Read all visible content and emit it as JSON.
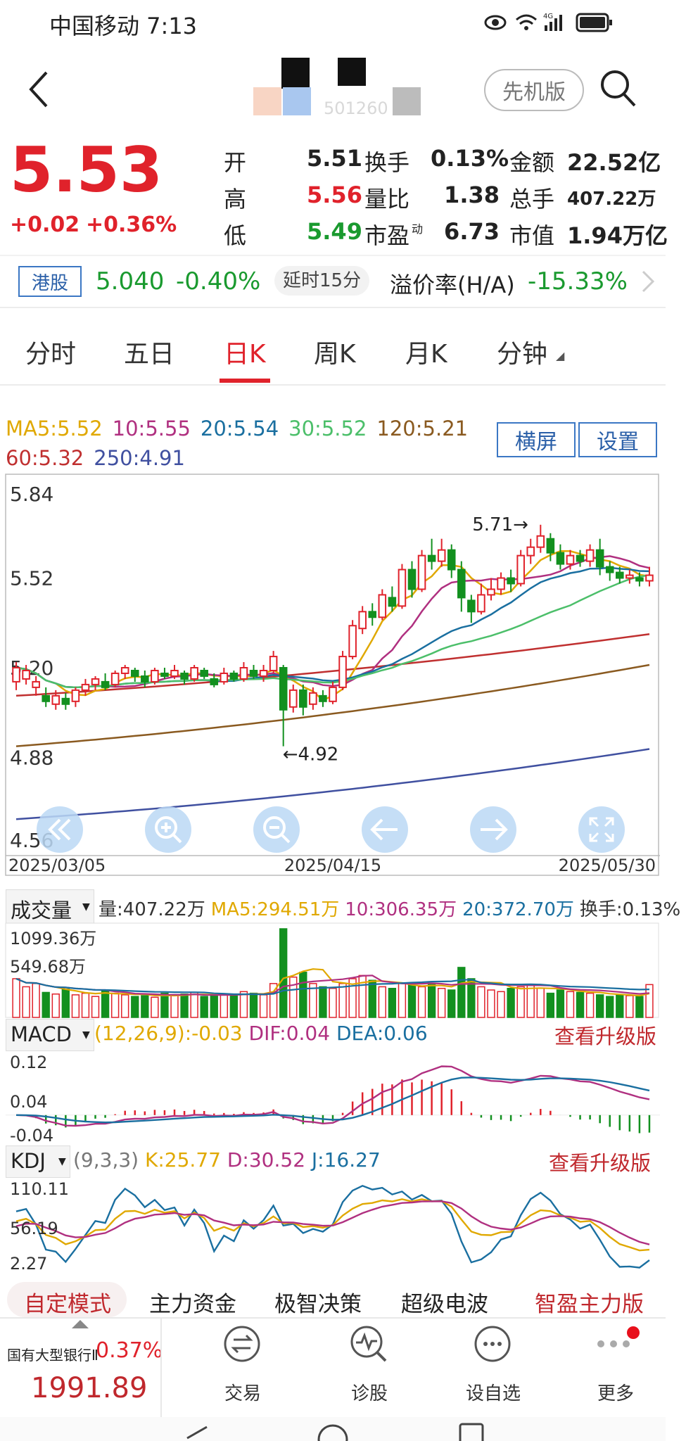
{
  "status_bar": {
    "carrier_time": "中国移动 7:13",
    "network": "4G"
  },
  "header": {
    "mode_label": "先机版",
    "blurred_code": "501260"
  },
  "quote": {
    "price": "5.53",
    "change": "+0.02",
    "change_pct": "+0.36%",
    "stats": [
      {
        "label": "开",
        "value": "5.51",
        "color": "#222",
        "label2": "换手",
        "value2": "0.13%",
        "label3": "金额",
        "value3": "22.52亿"
      },
      {
        "label": "高",
        "value": "5.56",
        "color": "#e0222b",
        "label2": "量比",
        "value2": "1.38",
        "label3": "总手",
        "value3": "407.22万"
      },
      {
        "label": "低",
        "value": "5.49",
        "color": "#1a9a2f",
        "label2": "市盈",
        "label2_sup": "动",
        "value2": "6.73",
        "label3": "市值",
        "value3": "1.94万亿"
      }
    ]
  },
  "hk": {
    "tag": "港股",
    "price": "5.040",
    "change_pct": "-0.40%",
    "delay": "延时15分",
    "premium_label": "溢价率(H/A)",
    "premium": "-15.33%"
  },
  "tabs": [
    "分时",
    "五日",
    "日K",
    "周K",
    "月K",
    "分钟"
  ],
  "active_tab": 2,
  "ma_legend": {
    "row1": [
      {
        "text": "MA5:5.52",
        "color": "#e0a800"
      },
      {
        "text": "10:5.55",
        "color": "#b03080"
      },
      {
        "text": "20:5.54",
        "color": "#1a6fa0"
      },
      {
        "text": "30:5.52",
        "color": "#4cbf6a"
      },
      {
        "text": "120:5.21",
        "color": "#8a5a20"
      }
    ],
    "row2": [
      {
        "text": "60:5.32",
        "color": "#c03030"
      },
      {
        "text": "250:4.91",
        "color": "#4050a0"
      }
    ]
  },
  "panel_buttons": {
    "landscape": "横屏",
    "settings": "设置"
  },
  "chart_data": [
    {
      "type": "candlestick",
      "y_ticks": [
        "5.84",
        "5.52",
        "5.20",
        "4.88",
        "4.56"
      ],
      "ylim": [
        4.56,
        5.84
      ],
      "x_ticks": [
        "2025/03/05",
        "2025/04/15",
        "2025/05/30"
      ],
      "annotations": {
        "high": "5.71→",
        "low": "←4.92"
      },
      "candles": [
        [
          5.15,
          5.2,
          5.12,
          5.22
        ],
        [
          5.16,
          5.19,
          5.14,
          5.21
        ],
        [
          5.13,
          5.15,
          5.1,
          5.17
        ],
        [
          5.1,
          5.08,
          5.06,
          5.13
        ],
        [
          5.07,
          5.1,
          5.05,
          5.12
        ],
        [
          5.09,
          5.07,
          5.05,
          5.11
        ],
        [
          5.08,
          5.12,
          5.06,
          5.13
        ],
        [
          5.12,
          5.14,
          5.1,
          5.16
        ],
        [
          5.14,
          5.16,
          5.12,
          5.17
        ],
        [
          5.15,
          5.13,
          5.12,
          5.18
        ],
        [
          5.14,
          5.18,
          5.13,
          5.19
        ],
        [
          5.18,
          5.2,
          5.16,
          5.21
        ],
        [
          5.19,
          5.17,
          5.15,
          5.2
        ],
        [
          5.17,
          5.15,
          5.13,
          5.19
        ],
        [
          5.15,
          5.19,
          5.14,
          5.2
        ],
        [
          5.18,
          5.17,
          5.16,
          5.2
        ],
        [
          5.17,
          5.19,
          5.16,
          5.21
        ],
        [
          5.18,
          5.16,
          5.14,
          5.19
        ],
        [
          5.16,
          5.2,
          5.15,
          5.21
        ],
        [
          5.19,
          5.17,
          5.16,
          5.2
        ],
        [
          5.16,
          5.14,
          5.13,
          5.18
        ],
        [
          5.15,
          5.18,
          5.14,
          5.2
        ],
        [
          5.18,
          5.16,
          5.15,
          5.19
        ],
        [
          5.16,
          5.2,
          5.15,
          5.22
        ],
        [
          5.19,
          5.17,
          5.16,
          5.21
        ],
        [
          5.17,
          5.19,
          5.15,
          5.21
        ],
        [
          5.19,
          5.24,
          5.18,
          5.26
        ],
        [
          5.2,
          5.05,
          4.92,
          5.21
        ],
        [
          5.06,
          5.12,
          5.04,
          5.14
        ],
        [
          5.12,
          5.06,
          5.03,
          5.14
        ],
        [
          5.07,
          5.11,
          5.05,
          5.13
        ],
        [
          5.1,
          5.08,
          5.06,
          5.12
        ],
        [
          5.08,
          5.13,
          5.07,
          5.15
        ],
        [
          5.13,
          5.24,
          5.12,
          5.26
        ],
        [
          5.24,
          5.35,
          5.23,
          5.37
        ],
        [
          5.34,
          5.4,
          5.32,
          5.42
        ],
        [
          5.4,
          5.38,
          5.35,
          5.43
        ],
        [
          5.38,
          5.46,
          5.37,
          5.48
        ],
        [
          5.45,
          5.42,
          5.4,
          5.49
        ],
        [
          5.42,
          5.55,
          5.41,
          5.57
        ],
        [
          5.55,
          5.48,
          5.45,
          5.58
        ],
        [
          5.48,
          5.6,
          5.47,
          5.62
        ],
        [
          5.6,
          5.58,
          5.55,
          5.66
        ],
        [
          5.58,
          5.62,
          5.56,
          5.66
        ],
        [
          5.62,
          5.55,
          5.52,
          5.64
        ],
        [
          5.55,
          5.45,
          5.4,
          5.58
        ],
        [
          5.44,
          5.4,
          5.36,
          5.46
        ],
        [
          5.4,
          5.46,
          5.39,
          5.5
        ],
        [
          5.46,
          5.48,
          5.44,
          5.52
        ],
        [
          5.48,
          5.52,
          5.46,
          5.54
        ],
        [
          5.52,
          5.5,
          5.47,
          5.55
        ],
        [
          5.5,
          5.6,
          5.49,
          5.62
        ],
        [
          5.6,
          5.63,
          5.57,
          5.66
        ],
        [
          5.63,
          5.67,
          5.61,
          5.71
        ],
        [
          5.66,
          5.61,
          5.58,
          5.68
        ],
        [
          5.61,
          5.57,
          5.55,
          5.64
        ],
        [
          5.57,
          5.6,
          5.55,
          5.62
        ],
        [
          5.6,
          5.58,
          5.56,
          5.62
        ],
        [
          5.58,
          5.62,
          5.56,
          5.64
        ],
        [
          5.62,
          5.56,
          5.53,
          5.66
        ],
        [
          5.56,
          5.54,
          5.51,
          5.58
        ],
        [
          5.54,
          5.52,
          5.5,
          5.56
        ],
        [
          5.52,
          5.53,
          5.5,
          5.55
        ],
        [
          5.52,
          5.51,
          5.49,
          5.54
        ],
        [
          5.51,
          5.53,
          5.49,
          5.56
        ]
      ],
      "ma_lines": [
        {
          "name": "MA5",
          "color": "#e0a800",
          "from": 5.18,
          "to": 5.52
        },
        {
          "name": "120",
          "color": "#8a5a20",
          "from": 4.92,
          "to": 5.21
        },
        {
          "name": "60",
          "color": "#c03030",
          "from": 5.1,
          "to": 5.32
        },
        {
          "name": "250",
          "color": "#4050a0",
          "from": 4.66,
          "to": 4.91
        }
      ]
    },
    {
      "type": "bar",
      "title": "成交量",
      "legend": [
        {
          "text": "量:407.22万",
          "color": "#333"
        },
        {
          "text": "MA5:294.51万",
          "color": "#e0a800"
        },
        {
          "text": "10:306.35万",
          "color": "#b03080"
        },
        {
          "text": "20:372.70万",
          "color": "#1a6fa0"
        },
        {
          "text": "换手:0.13%",
          "color": "#333"
        }
      ],
      "y_ticks": [
        "1099.36万",
        "549.68万"
      ],
      "values": [
        480,
        380,
        420,
        310,
        290,
        350,
        280,
        300,
        260,
        330,
        300,
        280,
        260,
        270,
        250,
        300,
        270,
        290,
        310,
        260,
        280,
        290,
        270,
        320,
        300,
        280,
        420,
        1099,
        500,
        560,
        420,
        380,
        360,
        420,
        480,
        520,
        460,
        380,
        360,
        420,
        400,
        380,
        420,
        360,
        340,
        620,
        480,
        380,
        340,
        320,
        360,
        380,
        400,
        360,
        300,
        340,
        320,
        310,
        300,
        280,
        260,
        280,
        270,
        260,
        407
      ]
    },
    {
      "type": "line",
      "title": "MACD",
      "params": "(12,26,9):-0.03",
      "dif_label": "DIF:0.04",
      "dea_label": "DEA:0.06",
      "upgrade": "查看升级版",
      "y_ticks": [
        "0.12",
        "0.04",
        "-0.04"
      ]
    },
    {
      "type": "line",
      "title": "KDJ",
      "params": "(9,3,3)",
      "k_label": "K:25.77",
      "d_label": "D:30.52",
      "j_label": "J:16.27",
      "upgrade": "查看升级版",
      "y_ticks": [
        "110.11",
        "56.19",
        "2.27"
      ]
    }
  ],
  "indicator_tabs": [
    "自定模式",
    "主力资金",
    "极智决策",
    "超级电波",
    "智盈主力版"
  ],
  "bottom_bar": {
    "index_name": "国有大型银行Ⅱ",
    "index_pct": "0.37%",
    "index_value": "1991.89",
    "items": [
      {
        "label": "交易",
        "icon": "trade-icon"
      },
      {
        "label": "诊股",
        "icon": "diagnose-icon"
      },
      {
        "label": "设自选",
        "icon": "add-watchlist-icon"
      },
      {
        "label": "更多",
        "icon": "more-icon"
      }
    ]
  }
}
